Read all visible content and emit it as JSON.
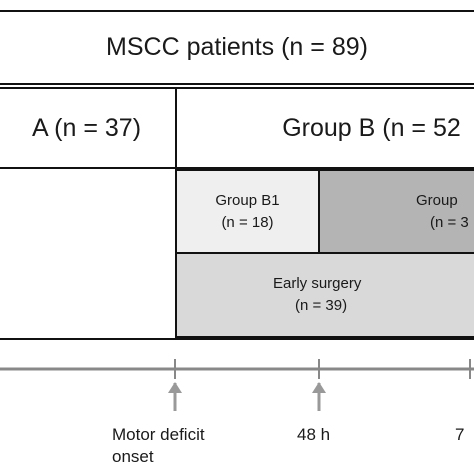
{
  "title": "MSCC patients (n = 89)",
  "groups": {
    "a": "A (n = 37)",
    "b": "Group B (n = 52"
  },
  "subgroups": {
    "b1": {
      "name": "Group B1",
      "n": "(n = 18)"
    },
    "b2": {
      "name": "Group",
      "n": "(n = 3"
    }
  },
  "early_surgery": {
    "name": "Early surgery",
    "n": "(n = 39)"
  },
  "timeline": {
    "labels": {
      "onset_line1": "Motor deficit",
      "onset_line2": "onset",
      "h48": "48 h",
      "seven": "7"
    }
  },
  "colors": {
    "line": "#111111",
    "axis": "#888888",
    "b1_fill": "#efefef",
    "b2_fill": "#b4b4b4",
    "early_fill": "#d9d9d9"
  }
}
